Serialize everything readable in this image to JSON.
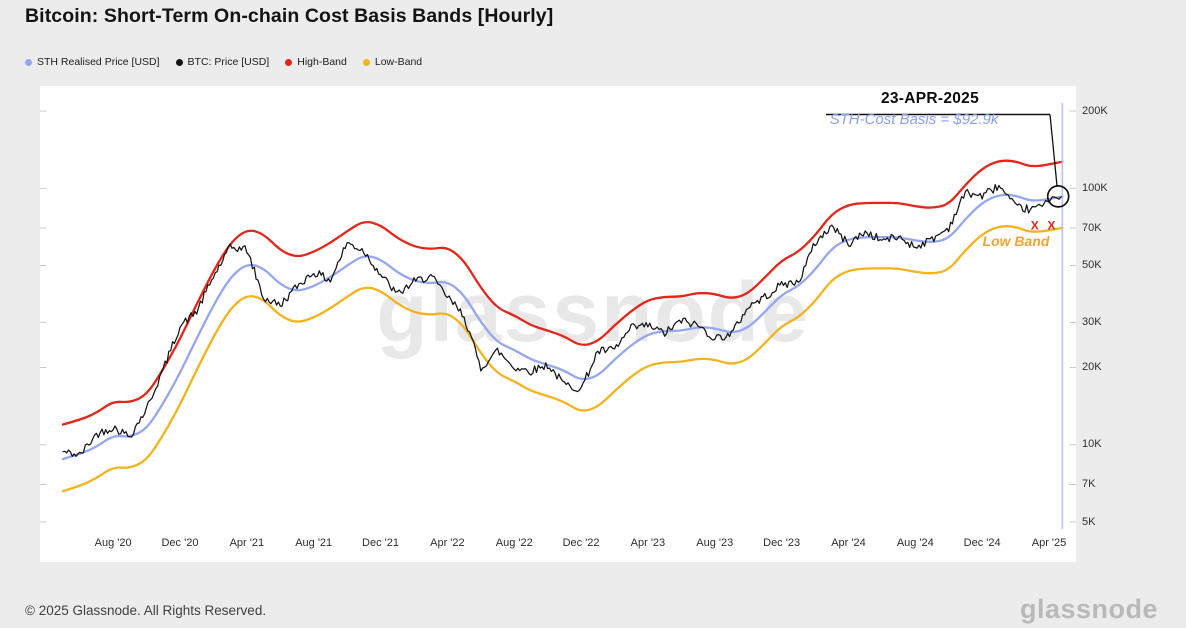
{
  "header": {
    "title": "Bitcoin: Short-Term On-chain Cost Basis Bands [Hourly]"
  },
  "watermark": {
    "center": "glassnode"
  },
  "footer": {
    "copyright": "© 2025 Glassnode. All Rights Reserved.",
    "brand": "glassnode"
  },
  "annotations": {
    "date_label": "23-APR-2025",
    "cost_basis_label": "STH-Cost Basis = $92.9k",
    "cost_basis_color": "#8ba0f2",
    "low_band_label": "Low Band",
    "low_band_color": "#f0a433",
    "marker_month": 59.8,
    "marker_line_color": "#b5c0f5",
    "circle_marker": {
      "month": 59.55,
      "value": 93000
    },
    "x_marks": [
      {
        "month": 58.15,
        "value": 71500,
        "char": "X"
      },
      {
        "month": 59.15,
        "value": 71000,
        "char": "X"
      }
    ],
    "x_mark_color": "#e8231c"
  },
  "chart_data": {
    "type": "line",
    "title": "Bitcoin: Short-Term On-chain Cost Basis Bands [Hourly]",
    "yscale": "log",
    "ylim": [
      5000,
      245000
    ],
    "grid": false,
    "legend_position": "top-left",
    "x_unit": "months since May 2020",
    "x": [
      0,
      1,
      2,
      3,
      4,
      5,
      6,
      7,
      8,
      9,
      10,
      11,
      12,
      13,
      14,
      15,
      16,
      17,
      18,
      19,
      20,
      21,
      22,
      23,
      24,
      25,
      26,
      27,
      28,
      29,
      30,
      31,
      32,
      33,
      34,
      35,
      36,
      37,
      38,
      39,
      40,
      41,
      42,
      43,
      44,
      45,
      46,
      47,
      48,
      49,
      50,
      51,
      52,
      53,
      54,
      55,
      56,
      57,
      58,
      59.8
    ],
    "xticks": [
      {
        "month": 3,
        "label": "Aug '20"
      },
      {
        "month": 7,
        "label": "Dec '20"
      },
      {
        "month": 11,
        "label": "Apr '21"
      },
      {
        "month": 15,
        "label": "Aug '21"
      },
      {
        "month": 19,
        "label": "Dec '21"
      },
      {
        "month": 23,
        "label": "Apr '22"
      },
      {
        "month": 27,
        "label": "Aug '22"
      },
      {
        "month": 31,
        "label": "Dec '22"
      },
      {
        "month": 35,
        "label": "Apr '23"
      },
      {
        "month": 39,
        "label": "Aug '23"
      },
      {
        "month": 43,
        "label": "Dec '23"
      },
      {
        "month": 47,
        "label": "Apr '24"
      },
      {
        "month": 51,
        "label": "Aug '24"
      },
      {
        "month": 55,
        "label": "Dec '24"
      },
      {
        "month": 59,
        "label": "Apr '25"
      }
    ],
    "yticks": [
      {
        "value": 200000,
        "label": "200K"
      },
      {
        "value": 100000,
        "label": "100K"
      },
      {
        "value": 70000,
        "label": "70K"
      },
      {
        "value": 50000,
        "label": "50K"
      },
      {
        "value": 30000,
        "label": "30K"
      },
      {
        "value": 20000,
        "label": "20K"
      },
      {
        "value": 10000,
        "label": "10K"
      },
      {
        "value": 7000,
        "label": "7K"
      },
      {
        "value": 5000,
        "label": "5K"
      }
    ],
    "series": [
      {
        "name": "STH Realised Price [USD]",
        "color": "#96a7f2",
        "z": 2,
        "volatile": false,
        "values": [
          8800,
          9200,
          9800,
          10900,
          10700,
          11500,
          14500,
          19000,
          26000,
          35000,
          45000,
          51000,
          49000,
          42000,
          39500,
          41500,
          45000,
          50000,
          55000,
          53000,
          47000,
          43500,
          42500,
          43500,
          38500,
          30000,
          25000,
          23500,
          21500,
          20500,
          19500,
          17800,
          18500,
          21500,
          24500,
          27000,
          27800,
          27800,
          28800,
          28500,
          27200,
          28500,
          33000,
          38500,
          41500,
          48000,
          58500,
          63500,
          64500,
          64500,
          64500,
          62500,
          61500,
          63500,
          76000,
          88000,
          94500,
          94000,
          88500,
          92900
        ]
      },
      {
        "name": "BTC: Price [USD]",
        "color": "#141414",
        "z": 3,
        "volatile": true,
        "values": [
          9400,
          9100,
          11000,
          11700,
          10800,
          13800,
          19700,
          29000,
          33100,
          45200,
          58800,
          57800,
          37300,
          35000,
          41500,
          47100,
          43800,
          61300,
          57000,
          46200,
          38500,
          43200,
          45500,
          37700,
          31800,
          19900,
          23300,
          20000,
          19400,
          20500,
          17200,
          16500,
          23100,
          23500,
          28500,
          29200,
          27200,
          30500,
          29200,
          26000,
          27000,
          34600,
          37700,
          42200,
          43000,
          61200,
          71300,
          60600,
          67500,
          62700,
          64600,
          59100,
          63300,
          70200,
          96400,
          93400,
          102400,
          84300,
          82500,
          93700
        ]
      },
      {
        "name": "High-Band",
        "color": "#e3261a",
        "z": 1,
        "volatile": false,
        "values": [
          12000,
          12500,
          13300,
          14800,
          14600,
          15600,
          19700,
          25800,
          35400,
          47600,
          61200,
          69400,
          66600,
          57100,
          53700,
          56400,
          61200,
          68000,
          74800,
          72100,
          63900,
          59200,
          57800,
          59200,
          52400,
          40800,
          34000,
          32000,
          29200,
          27900,
          26500,
          24200,
          25200,
          29200,
          33300,
          36700,
          37800,
          37800,
          39200,
          38800,
          37000,
          38800,
          44900,
          52400,
          56400,
          65300,
          79600,
          86400,
          87700,
          87700,
          87700,
          85000,
          83600,
          86400,
          103400,
          119700,
          128500,
          127800,
          120400,
          127000
        ]
      },
      {
        "name": "Low-Band",
        "color": "#f2b31c",
        "z": 1,
        "volatile": false,
        "values": [
          6600,
          6900,
          7400,
          8200,
          8100,
          8700,
          10900,
          14300,
          19600,
          26400,
          34000,
          38500,
          37000,
          31700,
          29800,
          31300,
          34000,
          37800,
          41500,
          40000,
          35500,
          32800,
          32100,
          32800,
          29100,
          22700,
          18900,
          17700,
          16200,
          15500,
          14700,
          13400,
          14000,
          16200,
          18500,
          20400,
          21000,
          21000,
          21700,
          21500,
          20500,
          21500,
          24900,
          29100,
          31300,
          36200,
          44200,
          47900,
          48700,
          48700,
          48700,
          47200,
          46400,
          47900,
          57400,
          66400,
          71300,
          71000,
          66800,
          70100
        ]
      }
    ]
  }
}
